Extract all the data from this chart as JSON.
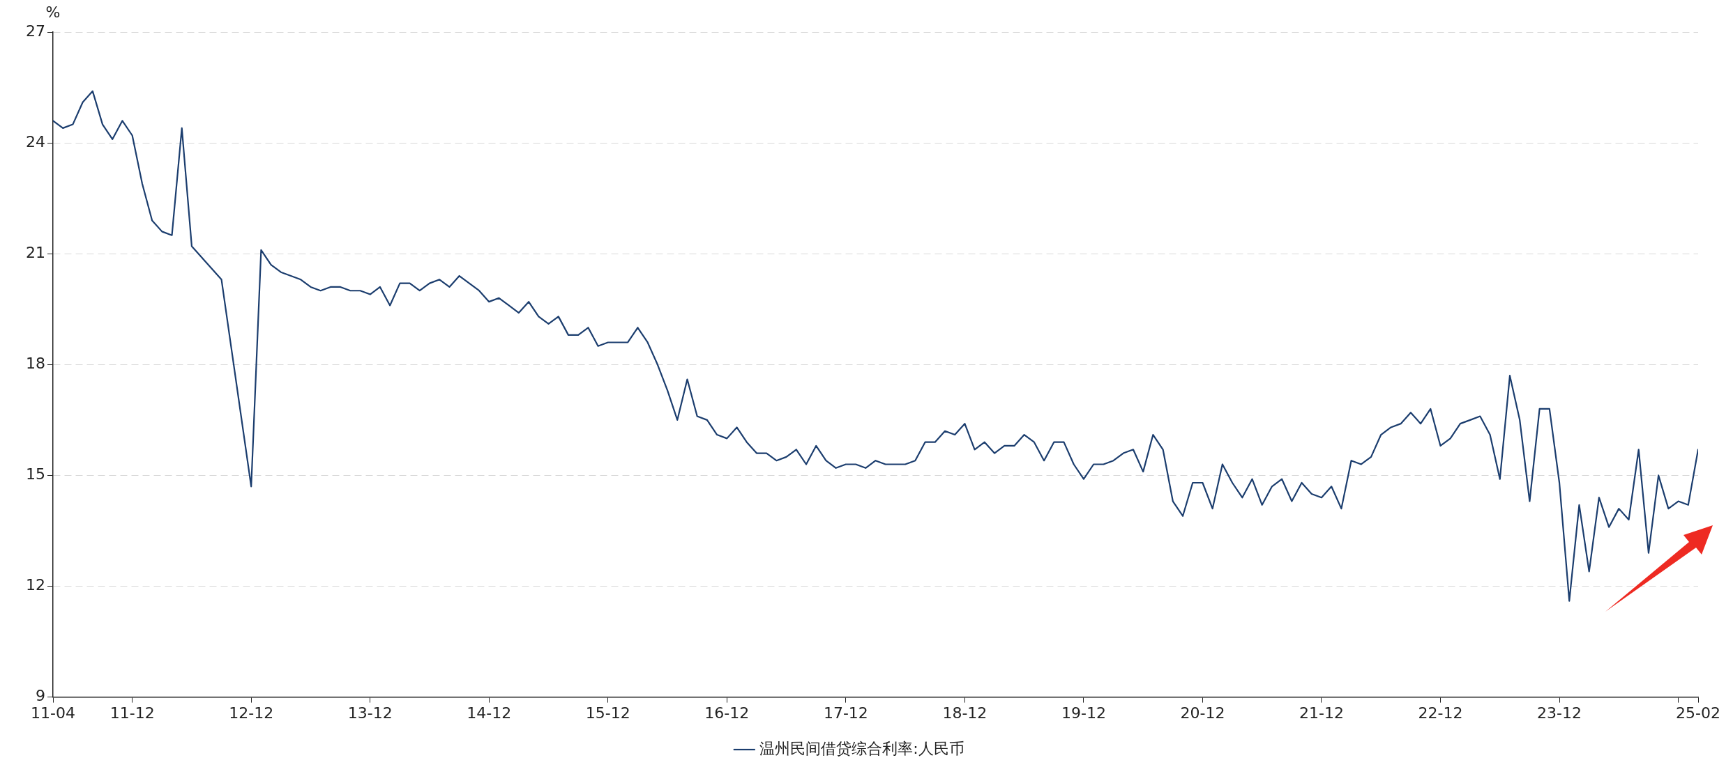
{
  "chart_data": {
    "type": "line",
    "ylabel": "%",
    "legend": "bottom",
    "grid": "y",
    "line_style": "solid",
    "marker": "none",
    "xlim": [
      "2011-04",
      "2025-02"
    ],
    "xticks": [
      {
        "value": "2011-04",
        "label": "11-04"
      },
      {
        "value": "2011-12",
        "label": "11-12"
      },
      {
        "value": "2012-12",
        "label": "12-12"
      },
      {
        "value": "2013-12",
        "label": "13-12"
      },
      {
        "value": "2014-12",
        "label": "14-12"
      },
      {
        "value": "2015-12",
        "label": "15-12"
      },
      {
        "value": "2016-12",
        "label": "16-12"
      },
      {
        "value": "2017-12",
        "label": "17-12"
      },
      {
        "value": "2018-12",
        "label": "18-12"
      },
      {
        "value": "2019-12",
        "label": "19-12"
      },
      {
        "value": "2020-12",
        "label": "20-12"
      },
      {
        "value": "2021-12",
        "label": "21-12"
      },
      {
        "value": "2022-12",
        "label": "22-12"
      },
      {
        "value": "2023-12",
        "label": "23-12"
      },
      {
        "value": "2024-12",
        "label": null
      },
      {
        "value": "2025-02",
        "label": "25-02"
      }
    ],
    "ylim": [
      9,
      27
    ],
    "yticks": [
      9,
      12,
      15,
      18,
      21,
      24,
      27
    ],
    "series": [
      {
        "name": "温州民间借贷综合利率:人民币",
        "color": "#1b3d6e",
        "x": [
          "2011-04",
          "2011-05",
          "2011-06",
          "2011-07",
          "2011-08",
          "2011-09",
          "2011-10",
          "2011-11",
          "2011-12",
          "2012-01",
          "2012-02",
          "2012-03",
          "2012-04",
          "2012-05",
          "2012-06",
          "2012-09",
          "2012-12",
          "2013-01",
          "2013-02",
          "2013-03",
          "2013-04",
          "2013-05",
          "2013-06",
          "2013-07",
          "2013-08",
          "2013-09",
          "2013-10",
          "2013-11",
          "2013-12",
          "2014-01",
          "2014-02",
          "2014-03",
          "2014-04",
          "2014-05",
          "2014-06",
          "2014-07",
          "2014-08",
          "2014-09",
          "2014-10",
          "2014-11",
          "2014-12",
          "2015-01",
          "2015-02",
          "2015-03",
          "2015-04",
          "2015-05",
          "2015-06",
          "2015-07",
          "2015-08",
          "2015-09",
          "2015-10",
          "2015-11",
          "2015-12",
          "2016-01",
          "2016-02",
          "2016-03",
          "2016-04",
          "2016-05",
          "2016-06",
          "2016-07",
          "2016-08",
          "2016-09",
          "2016-10",
          "2016-11",
          "2016-12",
          "2017-01",
          "2017-02",
          "2017-03",
          "2017-04",
          "2017-05",
          "2017-06",
          "2017-07",
          "2017-08",
          "2017-09",
          "2017-10",
          "2017-11",
          "2017-12",
          "2018-01",
          "2018-02",
          "2018-03",
          "2018-04",
          "2018-05",
          "2018-06",
          "2018-07",
          "2018-08",
          "2018-09",
          "2018-10",
          "2018-11",
          "2018-12",
          "2019-01",
          "2019-02",
          "2019-03",
          "2019-04",
          "2019-05",
          "2019-06",
          "2019-07",
          "2019-08",
          "2019-09",
          "2019-10",
          "2019-11",
          "2019-12",
          "2020-01",
          "2020-02",
          "2020-03",
          "2020-04",
          "2020-05",
          "2020-06",
          "2020-07",
          "2020-08",
          "2020-09",
          "2020-10",
          "2020-11",
          "2020-12",
          "2021-01",
          "2021-02",
          "2021-03",
          "2021-04",
          "2021-05",
          "2021-06",
          "2021-07",
          "2021-08",
          "2021-09",
          "2021-10",
          "2021-11",
          "2021-12",
          "2022-01",
          "2022-02",
          "2022-03",
          "2022-04",
          "2022-05",
          "2022-06",
          "2022-07",
          "2022-08",
          "2022-09",
          "2022-10",
          "2022-11",
          "2022-12",
          "2023-01",
          "2023-02",
          "2023-03",
          "2023-04",
          "2023-05",
          "2023-06",
          "2023-07",
          "2023-08",
          "2023-09",
          "2023-10",
          "2023-11",
          "2023-12",
          "2024-01",
          "2024-02",
          "2024-03",
          "2024-04",
          "2024-05",
          "2024-06",
          "2024-07",
          "2024-08",
          "2024-09",
          "2024-10",
          "2024-11",
          "2024-12",
          "2025-01",
          "2025-02"
        ],
        "values": [
          24.6,
          24.4,
          24.5,
          25.1,
          25.4,
          24.5,
          24.1,
          24.6,
          24.2,
          22.9,
          21.9,
          21.6,
          21.5,
          24.4,
          21.2,
          20.3,
          14.7,
          21.1,
          20.7,
          20.5,
          20.4,
          20.3,
          20.1,
          20.0,
          20.1,
          20.1,
          20.0,
          20.0,
          19.9,
          20.1,
          19.6,
          20.2,
          20.2,
          20.0,
          20.2,
          20.3,
          20.1,
          20.4,
          20.2,
          20.0,
          19.7,
          19.8,
          19.6,
          19.4,
          19.7,
          19.3,
          19.1,
          19.3,
          18.8,
          18.8,
          19.0,
          18.5,
          18.6,
          18.6,
          18.6,
          19.0,
          18.6,
          18.0,
          17.3,
          16.5,
          17.6,
          16.6,
          16.5,
          16.1,
          16.0,
          16.3,
          15.9,
          15.6,
          15.6,
          15.4,
          15.5,
          15.7,
          15.3,
          15.8,
          15.4,
          15.2,
          15.3,
          15.3,
          15.2,
          15.4,
          15.3,
          15.3,
          15.3,
          15.4,
          15.9,
          15.9,
          16.2,
          16.1,
          16.4,
          15.7,
          15.9,
          15.6,
          15.8,
          15.8,
          16.1,
          15.9,
          15.4,
          15.9,
          15.9,
          15.3,
          14.9,
          15.3,
          15.3,
          15.4,
          15.6,
          15.7,
          15.1,
          16.1,
          15.7,
          14.3,
          13.9,
          14.8,
          14.8,
          14.1,
          15.3,
          14.8,
          14.4,
          14.9,
          14.2,
          14.7,
          14.9,
          14.3,
          14.8,
          14.5,
          14.4,
          14.7,
          14.1,
          15.4,
          15.3,
          15.5,
          16.1,
          16.3,
          16.4,
          16.7,
          16.4,
          16.8,
          15.8,
          16.0,
          16.4,
          16.5,
          16.6,
          16.1,
          14.9,
          17.7,
          16.5,
          14.3,
          16.8,
          16.8,
          14.8,
          11.6,
          14.2,
          12.4,
          14.4,
          13.6,
          14.1,
          13.8,
          15.7,
          12.9,
          15.0,
          14.1,
          14.3,
          14.2,
          15.7
        ]
      }
    ]
  }
}
